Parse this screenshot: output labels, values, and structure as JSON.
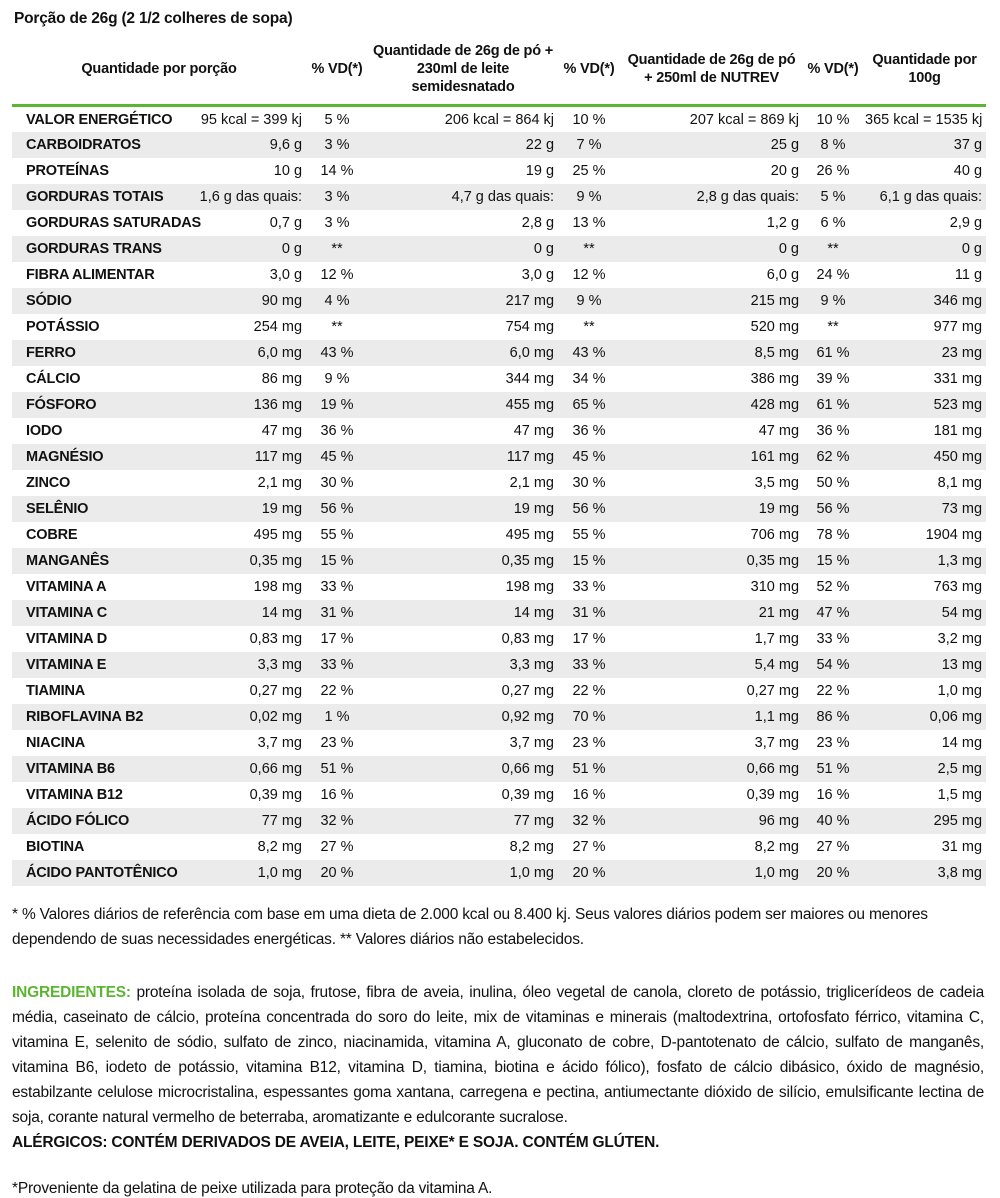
{
  "title": "Porção de 26g (2 1/2 colheres de sopa)",
  "colors": {
    "accent_green": "#5cb531",
    "row_stripe": "#ebebeb"
  },
  "table": {
    "headers": {
      "per_portion": "Quantidade por porção",
      "vd1": "% VD(*)",
      "with_milk": "Quantidade de 26g de pó + 230ml de leite semidesnatado",
      "vd2": "% VD(*)",
      "with_nutrev": "Quantidade de 26g de pó + 250ml de NUTREV",
      "vd3": "% VD(*)",
      "per_100g": "Quantidade por 100g"
    },
    "rows": [
      [
        "VALOR ENERGÉTICO",
        "95 kcal = 399 kj",
        "5 %",
        "206 kcal = 864 kj",
        "10 %",
        "207 kcal = 869 kj",
        "10 %",
        "365 kcal = 1535 kj"
      ],
      [
        "CARBOIDRATOS",
        "9,6 g",
        "3 %",
        "22 g",
        "7 %",
        "25 g",
        "8 %",
        "37 g"
      ],
      [
        "PROTEÍNAS",
        "10 g",
        "14 %",
        "19 g",
        "25 %",
        "20 g",
        "26 %",
        "40 g"
      ],
      [
        "GORDURAS TOTAIS",
        "1,6 g das quais:",
        "3 %",
        "4,7 g das quais:",
        "9 %",
        "2,8 g das quais:",
        "5 %",
        "6,1 g das quais:"
      ],
      [
        "GORDURAS SATURADAS",
        "0,7 g",
        "3 %",
        "2,8 g",
        "13 %",
        "1,2 g",
        "6 %",
        "2,9 g"
      ],
      [
        "GORDURAS TRANS",
        "0 g",
        "**",
        "0 g",
        "**",
        "0 g",
        "**",
        "0 g"
      ],
      [
        "FIBRA ALIMENTAR",
        "3,0 g",
        "12 %",
        "3,0 g",
        "12 %",
        "6,0 g",
        "24 %",
        "11 g"
      ],
      [
        "SÓDIO",
        "90 mg",
        "4 %",
        "217 mg",
        "9 %",
        "215 mg",
        "9 %",
        "346 mg"
      ],
      [
        "POTÁSSIO",
        "254 mg",
        "**",
        "754 mg",
        "**",
        "520 mg",
        "**",
        "977 mg"
      ],
      [
        "FERRO",
        "6,0 mg",
        "43 %",
        "6,0 mg",
        "43 %",
        "8,5 mg",
        "61 %",
        "23 mg"
      ],
      [
        "CÁLCIO",
        "86 mg",
        "9 %",
        "344 mg",
        "34 %",
        "386 mg",
        "39 %",
        "331 mg"
      ],
      [
        "FÓSFORO",
        "136 mg",
        "19 %",
        "455 mg",
        "65 %",
        "428 mg",
        "61 %",
        "523 mg"
      ],
      [
        "IODO",
        "47 mg",
        "36 %",
        "47 mg",
        "36 %",
        "47 mg",
        "36 %",
        "181 mg"
      ],
      [
        "MAGNÉSIO",
        "117 mg",
        "45 %",
        "117 mg",
        "45 %",
        "161 mg",
        "62 %",
        "450 mg"
      ],
      [
        "ZINCO",
        "2,1 mg",
        "30 %",
        "2,1 mg",
        "30 %",
        "3,5 mg",
        "50 %",
        "8,1 mg"
      ],
      [
        "SELÊNIO",
        "19 mg",
        "56 %",
        "19 mg",
        "56 %",
        "19 mg",
        "56 %",
        "73 mg"
      ],
      [
        "COBRE",
        "495 mg",
        "55 %",
        "495 mg",
        "55 %",
        "706 mg",
        "78 %",
        "1904 mg"
      ],
      [
        "MANGANÊS",
        "0,35 mg",
        "15 %",
        "0,35 mg",
        "15 %",
        "0,35 mg",
        "15 %",
        "1,3 mg"
      ],
      [
        "VITAMINA A",
        "198 mg",
        "33 %",
        "198 mg",
        "33 %",
        "310 mg",
        "52 %",
        "763 mg"
      ],
      [
        "VITAMINA C",
        "14 mg",
        "31 %",
        "14 mg",
        "31 %",
        "21 mg",
        "47 %",
        "54 mg"
      ],
      [
        "VITAMINA D",
        "0,83 mg",
        "17 %",
        "0,83 mg",
        "17 %",
        "1,7 mg",
        "33 %",
        "3,2 mg"
      ],
      [
        "VITAMINA E",
        "3,3 mg",
        "33 %",
        "3,3 mg",
        "33 %",
        "5,4 mg",
        "54 %",
        "13 mg"
      ],
      [
        "TIAMINA",
        "0,27 mg",
        "22 %",
        "0,27 mg",
        "22 %",
        "0,27 mg",
        "22 %",
        "1,0 mg"
      ],
      [
        "RIBOFLAVINA B2",
        "0,02 mg",
        "1 %",
        "0,92 mg",
        "70 %",
        "1,1 mg",
        "86 %",
        "0,06 mg"
      ],
      [
        "NIACINA",
        "3,7 mg",
        "23 %",
        "3,7 mg",
        "23 %",
        "3,7 mg",
        "23 %",
        "14 mg"
      ],
      [
        "VITAMINA B6",
        "0,66 mg",
        "51 %",
        "0,66 mg",
        "51 %",
        "0,66 mg",
        "51 %",
        "2,5 mg"
      ],
      [
        "VITAMINA B12",
        "0,39 mg",
        "16 %",
        "0,39 mg",
        "16 %",
        "0,39 mg",
        "16 %",
        "1,5 mg"
      ],
      [
        "ÁCIDO FÓLICO",
        "77 mg",
        "32 %",
        "77 mg",
        "32 %",
        "96 mg",
        "40 %",
        "295 mg"
      ],
      [
        "BIOTINA",
        "8,2 mg",
        "27 %",
        "8,2 mg",
        "27 %",
        "8,2 mg",
        "27 %",
        "31 mg"
      ],
      [
        "ÁCIDO PANTOTÊNICO",
        "1,0 mg",
        "20 %",
        "1,0 mg",
        "20 %",
        "1,0 mg",
        "20 %",
        "3,8 mg"
      ]
    ]
  },
  "footnote": "* % Valores diários de referência com base em uma dieta de 2.000 kcal ou 8.400 kj. Seus valores diários podem ser maiores ou menores dependendo de suas necessidades energéticas. ** Valores diários não estabelecidos.",
  "ingredients": {
    "label": "INGREDIENTES:",
    "text": " proteína isolada de soja, frutose, fibra de aveia, inulina, óleo vegetal de canola, cloreto de potássio, triglicerídeos de cadeia média, caseinato de cálcio, proteína concentrada do soro do leite, mix de vitaminas e minerais (maltodextrina, ortofosfato férrico, vitamina C, vitamina E, selenito de sódio, sulfato de zinco, niacinamida, vitamina A, gluconato de cobre, D-pantotenato de cálcio, sulfato de manganês, vitamina B6, iodeto de potássio, vitamina B12, vitamina D, tiamina, biotina e ácido fólico), fosfato de cálcio dibásico, óxido de magnésio, estabilzante celulose microcristalina, espessantes goma xantana, carregena e pectina, antiumectante dióxido de silício, emulsificante lectina de soja, corante natural vermelho de beterraba, aromatizante e edulcorante sucralose."
  },
  "allergens": "ALÉRGICOS: CONTÉM DERIVADOS DE AVEIA, LEITE, PEIXE* E SOJA. CONTÉM GLÚTEN.",
  "fish_note": "*Proveniente da gelatina de peixe utilizada para proteção da vitamina A."
}
